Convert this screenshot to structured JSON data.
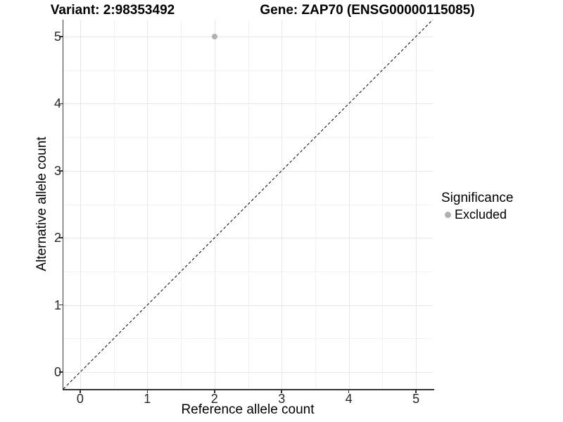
{
  "chart_data": {
    "type": "scatter",
    "title_variant": "Variant: 2:98353492",
    "title_gene": "Gene: ZAP70 (ENSG00000115085)",
    "xlabel": "Reference allele count",
    "ylabel": "Alternative allele count",
    "xlim": [
      -0.25,
      5.25
    ],
    "ylim": [
      -0.25,
      5.25
    ],
    "x_ticks": [
      0,
      1,
      2,
      3,
      4,
      5
    ],
    "y_ticks": [
      0,
      1,
      2,
      3,
      4,
      5
    ],
    "x_minor_ticks": [
      0.5,
      1.5,
      2.5,
      3.5,
      4.5
    ],
    "y_minor_ticks": [
      0.5,
      1.5,
      2.5,
      3.5,
      4.5
    ],
    "grid": true,
    "points": [
      {
        "x": 2,
        "y": 5,
        "series": "Excluded"
      }
    ],
    "identity_line": {
      "style": "dashed",
      "from": [
        -0.25,
        -0.25
      ],
      "to": [
        5.25,
        5.25
      ],
      "color": "#000000"
    },
    "legend": {
      "position": "right",
      "title": "Significance",
      "entries": [
        {
          "label": "Excluded",
          "color": "#b0b0b0"
        }
      ]
    },
    "colors": {
      "point_excluded": "#b0b0b0",
      "grid_major": "#e7e7e7",
      "grid_minor": "#f2f2f2",
      "axis_line": "#333333",
      "tick_label": "#262626"
    }
  }
}
